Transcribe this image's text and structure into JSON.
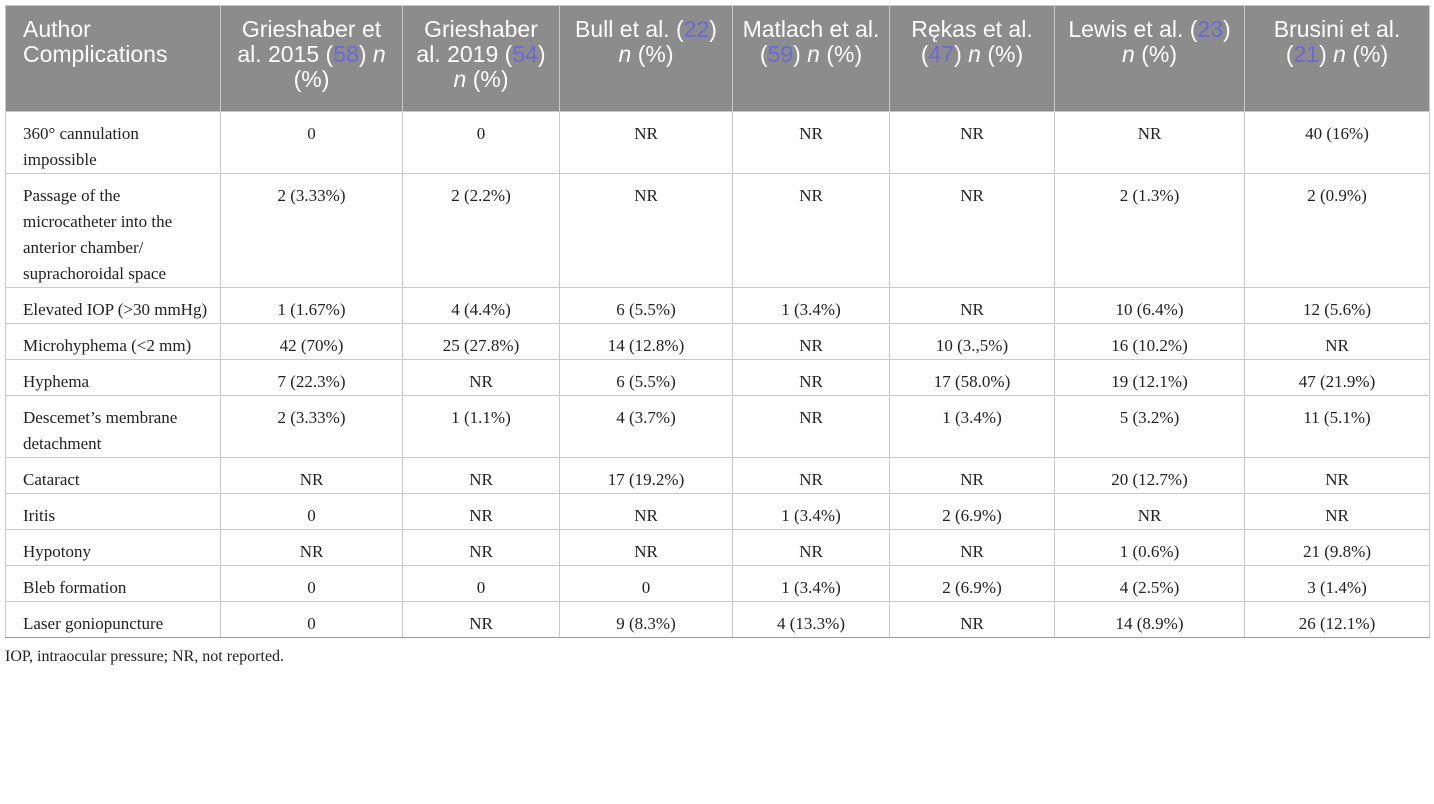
{
  "table": {
    "header": {
      "first": "Author Complications",
      "columns": [
        {
          "pre": "Grieshaber et al. 2015 (",
          "ref": "58",
          "post_open": ") ",
          "n": "n",
          "tail": " (%)"
        },
        {
          "pre": "Grieshaber al. 2019 (",
          "ref": "54",
          "post_open": ") ",
          "n": "n",
          "tail": " (%)"
        },
        {
          "pre": "Bull et al. (",
          "ref": "22",
          "post_open": ") ",
          "n": "n",
          "tail": " (%)"
        },
        {
          "pre": "Matlach et al. (",
          "ref": "59",
          "post_open": ") ",
          "n": "n",
          "tail": " (%)"
        },
        {
          "pre": "Rękas et al. (",
          "ref": "47",
          "post_open": ") ",
          "n": "n",
          "tail": " (%)"
        },
        {
          "pre": "Lewis et al. (",
          "ref": "23",
          "post_open": ") ",
          "n": "n",
          "tail": " (%)"
        },
        {
          "pre": "Brusini et al. (",
          "ref": "21",
          "post_open": ") ",
          "n": "n",
          "tail": " (%)"
        }
      ]
    },
    "rows": [
      {
        "label": "360° cannulation impossible",
        "cells": [
          "0",
          "0",
          "NR",
          "NR",
          "NR",
          "NR",
          "40 (16%)"
        ]
      },
      {
        "label": "Passage of the microcatheter into the anterior chamber/ suprachoroidal space",
        "cells": [
          "2 (3.33%)",
          "2 (2.2%)",
          "NR",
          "NR",
          "NR",
          "2 (1.3%)",
          "2 (0.9%)"
        ]
      },
      {
        "label": "Elevated IOP (>30 mmHg)",
        "cells": [
          "1 (1.67%)",
          "4 (4.4%)",
          "6 (5.5%)",
          "1 (3.4%)",
          "NR",
          "10 (6.4%)",
          "12 (5.6%)"
        ]
      },
      {
        "label": "Microhyphema (<2 mm)",
        "cells": [
          "42 (70%)",
          "25 (27.8%)",
          "14 (12.8%)",
          "NR",
          "10 (3.,5%)",
          "16 (10.2%)",
          "NR"
        ]
      },
      {
        "label": "Hyphema",
        "cells": [
          "7 (22.3%)",
          "NR",
          "6 (5.5%)",
          "NR",
          "17 (58.0%)",
          "19 (12.1%)",
          "47 (21.9%)"
        ]
      },
      {
        "label": "Descemet’s membrane detachment",
        "cells": [
          "2 (3.33%)",
          "1 (1.1%)",
          "4 (3.7%)",
          "NR",
          "1 (3.4%)",
          "5 (3.2%)",
          "11 (5.1%)"
        ]
      },
      {
        "label": "Cataract",
        "cells": [
          "NR",
          "NR",
          "17 (19.2%)",
          "NR",
          "NR",
          "20 (12.7%)",
          "NR"
        ]
      },
      {
        "label": "Iritis",
        "cells": [
          "0",
          "NR",
          "NR",
          "1 (3.4%)",
          "2 (6.9%)",
          "NR",
          "NR"
        ]
      },
      {
        "label": "Hypotony",
        "cells": [
          "NR",
          "NR",
          "NR",
          "NR",
          "NR",
          "1 (0.6%)",
          "21 (9.8%)"
        ]
      },
      {
        "label": "Bleb formation",
        "cells": [
          "0",
          "0",
          "0",
          "1 (3.4%)",
          "2 (6.9%)",
          "4 (2.5%)",
          "3 (1.4%)"
        ]
      },
      {
        "label": "Laser goniopuncture",
        "cells": [
          "0",
          "NR",
          "9 (8.3%)",
          "4 (13.3%)",
          "NR",
          "14 (8.9%)",
          "26 (12.1%)"
        ]
      }
    ],
    "footnote": "IOP, intraocular pressure; NR, not reported."
  }
}
